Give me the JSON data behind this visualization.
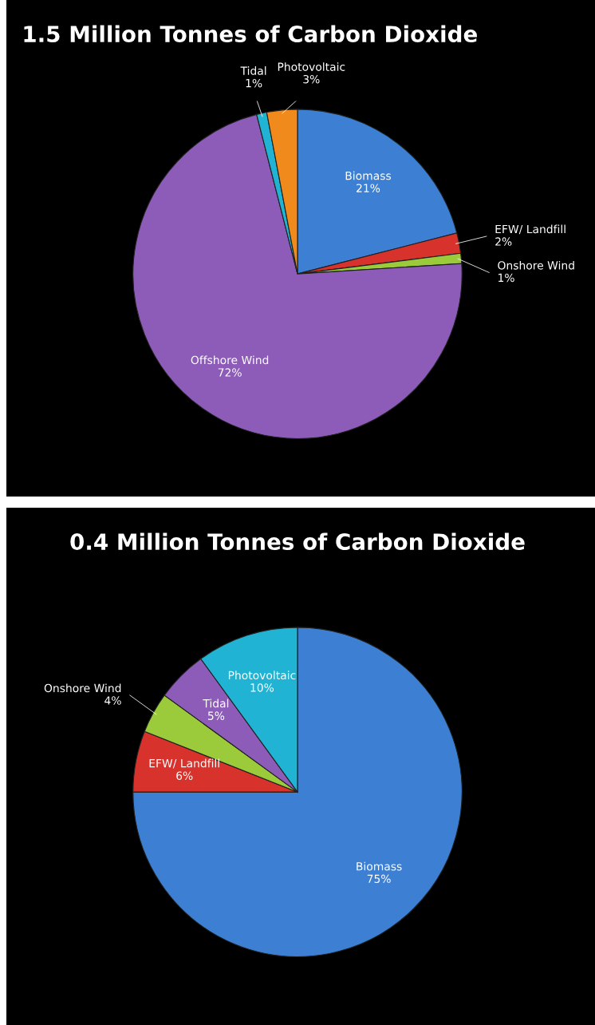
{
  "chart_data": [
    {
      "type": "pie",
      "title": "1.5 Million Tonnes of Carbon Dioxide",
      "categories": [
        "Biomass",
        "EFW/ Landfill",
        "Onshore Wind",
        "Offshore Wind",
        "Tidal",
        "Photovoltaic"
      ],
      "values": [
        21,
        2,
        1,
        72,
        1,
        3
      ],
      "value_labels": [
        "21%",
        "2%",
        "1%",
        "72%",
        "1%",
        "3%"
      ],
      "colors": [
        "#3d7fd2",
        "#d8322c",
        "#9bcb3a",
        "#8d5bb8",
        "#21b3d3",
        "#f08a1d"
      ]
    },
    {
      "type": "pie",
      "title": "0.4 Million Tonnes of Carbon Dioxide",
      "categories": [
        "Biomass",
        "EFW/ Landfill",
        "Onshore Wind",
        "Tidal",
        "Photovoltaic"
      ],
      "values": [
        75,
        6,
        4,
        5,
        10
      ],
      "value_labels": [
        "75%",
        "6%",
        "4%",
        "5%",
        "10%"
      ],
      "colors": [
        "#3d7fd2",
        "#d8322c",
        "#9bcb3a",
        "#8d5bb8",
        "#21b3d3"
      ]
    }
  ]
}
